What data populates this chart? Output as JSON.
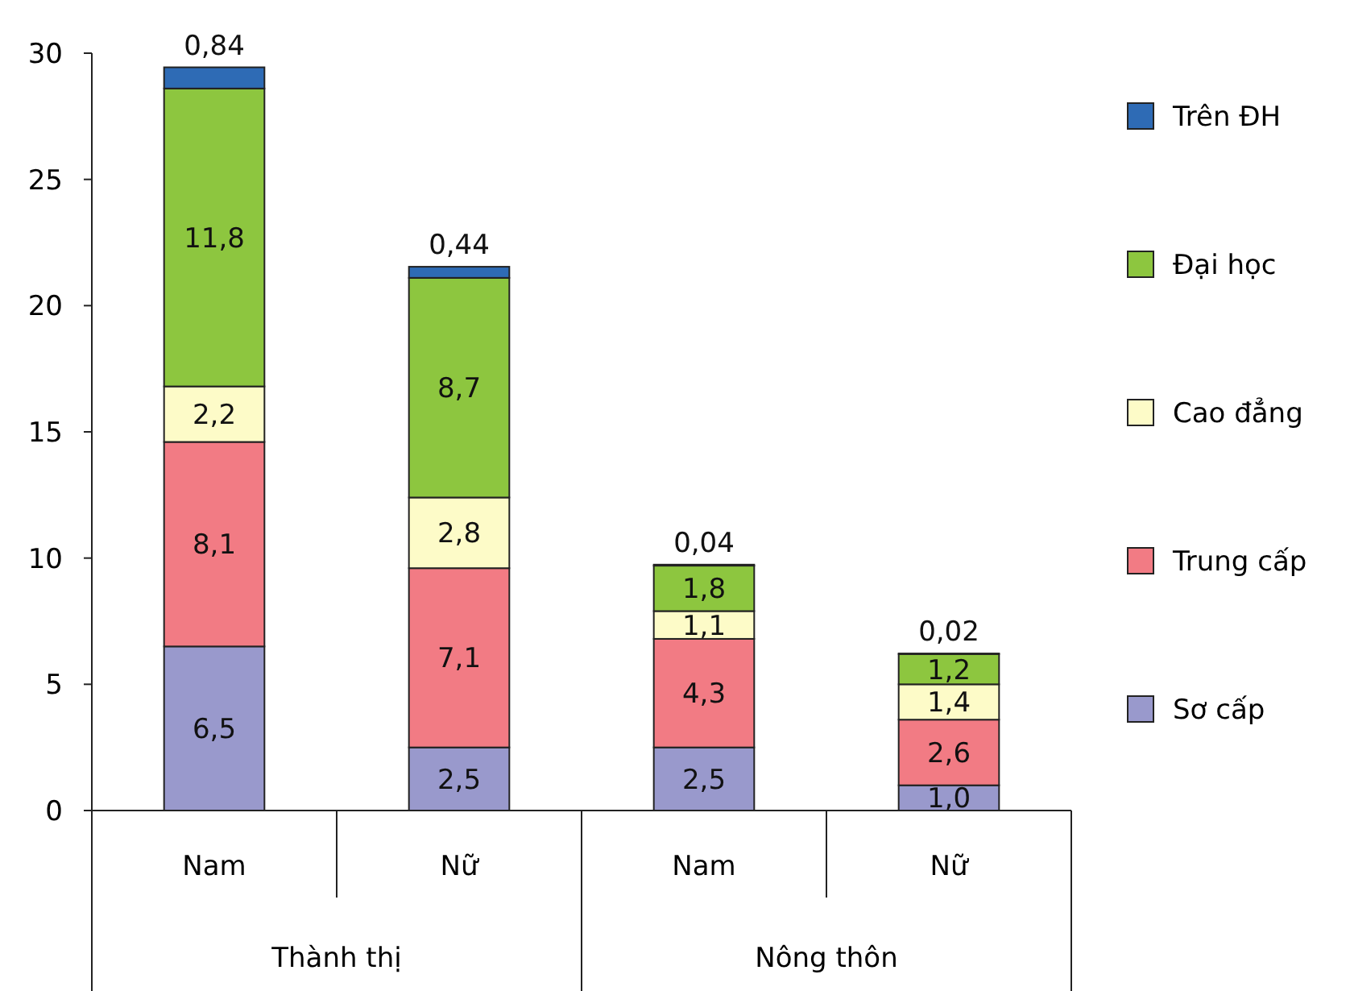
{
  "chart_data": {
    "type": "bar",
    "stacked": true,
    "categories": [
      "Nam",
      "Nữ",
      "Nam",
      "Nữ"
    ],
    "annotations": [
      "Thành thị",
      "Nông thôn"
    ],
    "series": [
      {
        "name": "Sơ cấp",
        "color": "#9999cc",
        "values": [
          6.5,
          2.5,
          2.5,
          1.0
        ],
        "value_labels": [
          "6,5",
          "2,5",
          "2,5",
          "1,0"
        ]
      },
      {
        "name": "Trung cấp",
        "color": "#f27b84",
        "values": [
          8.1,
          7.1,
          4.3,
          2.6
        ],
        "value_labels": [
          "8,1",
          "7,1",
          "4,3",
          "2,6"
        ]
      },
      {
        "name": "Cao đẳng",
        "color": "#fdfbc8",
        "values": [
          2.2,
          2.8,
          1.1,
          1.4
        ],
        "value_labels": [
          "2,2",
          "2,8",
          "1,1",
          "1,4"
        ]
      },
      {
        "name": "Đại học",
        "color": "#8dc63f",
        "values": [
          11.8,
          8.7,
          1.8,
          1.2
        ],
        "value_labels": [
          "11,8",
          "8,7",
          "1,8",
          "1,2"
        ]
      },
      {
        "name": "Trên ĐH",
        "color": "#2e6bb5",
        "values": [
          0.84,
          0.44,
          0.04,
          0.02
        ],
        "value_labels": [
          "0,84",
          "0,44",
          "0,04",
          "0,02"
        ]
      }
    ],
    "ylim": [
      0,
      30
    ],
    "yticks": [
      0,
      5,
      10,
      15,
      20,
      25,
      30
    ],
    "grid": false,
    "legend": "right"
  }
}
